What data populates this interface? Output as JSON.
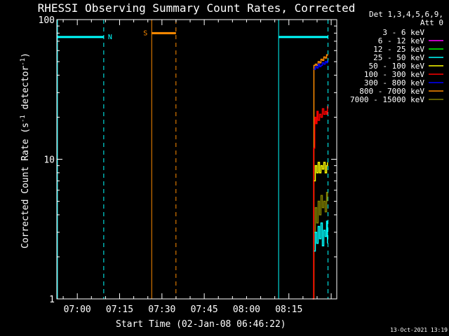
{
  "chart_data": {
    "type": "line",
    "title": "RHESSI Observing Summary Count Rates, Corrected",
    "xlabel": "Start Time (02-Jan-08 06:46:22)",
    "ylabel": "Corrected Count Rate (s",
    "ylabel_sup": "-1",
    "ylabel_mid": " detector",
    "ylabel_end": ")",
    "yscale": "log",
    "ylim": [
      1,
      100
    ],
    "yticks": [
      "1",
      "10",
      "100"
    ],
    "xrange_min": [
      6.37,
      105.6
    ],
    "xticks": [
      {
        "label": "07:00",
        "min": 13.63
      },
      {
        "label": "07:15",
        "min": 28.63
      },
      {
        "label": "07:30",
        "min": 43.63
      },
      {
        "label": "07:45",
        "min": 58.63
      },
      {
        "label": "08:00",
        "min": 73.63
      },
      {
        "label": "08:15",
        "min": 88.63
      }
    ],
    "legend": {
      "header1": "Det 1,3,4,5,6,9,",
      "header2": "Att 0",
      "items": [
        {
          "label": "3 - 6 keV",
          "color": "#000000"
        },
        {
          "label": "6 - 12 keV",
          "color": "#ff00ff"
        },
        {
          "label": "12 - 25 keV",
          "color": "#00ff00"
        },
        {
          "label": "25 - 50 keV",
          "color": "#00ffff"
        },
        {
          "label": "50 - 100 keV",
          "color": "#ffff00"
        },
        {
          "label": "100 - 300 keV",
          "color": "#ff0000"
        },
        {
          "label": "300 - 800 keV",
          "color": "#0000ff"
        },
        {
          "label": "800 - 7000 keV",
          "color": "#ff8c00"
        },
        {
          "label": "7000 - 15000 keV",
          "color": "#808000"
        }
      ]
    },
    "spans": [
      {
        "label": "N",
        "color": "#00ffff",
        "start": 6.37,
        "end": 23.0,
        "level": 75
      },
      {
        "label": "S",
        "color": "#ff8c00",
        "start": 40.0,
        "end": 48.6,
        "level": 80
      },
      {
        "label": "",
        "color": "#00ffff",
        "start": 85.0,
        "end": 102.5,
        "level": 75
      }
    ],
    "series": [
      {
        "color": "#ff8c00",
        "x": [
          97.2,
          97.5,
          98.0,
          98.5,
          99.0,
          99.5,
          100.0,
          100.5,
          101.0,
          101.5,
          102.0,
          102.3
        ],
        "y": [
          1,
          47,
          48,
          47,
          50,
          49,
          52,
          51,
          54,
          53,
          56,
          55
        ]
      },
      {
        "color": "#0000ff",
        "x": [
          97.5,
          98.0,
          98.5,
          99.0,
          99.5,
          100.0,
          100.5,
          101.0,
          101.5,
          102.0,
          102.3
        ],
        "y": [
          44,
          46,
          45,
          48,
          46,
          47,
          49,
          48,
          50,
          49,
          51
        ]
      },
      {
        "color": "#ff0000",
        "x": [
          97.0,
          97.4,
          97.8,
          98.2,
          98.6,
          99.0,
          99.5,
          100.0,
          100.5,
          101.0,
          101.5,
          102.0,
          102.3
        ],
        "y": [
          1,
          12,
          20,
          18,
          22,
          19,
          21,
          20,
          23,
          21,
          22,
          21,
          24
        ]
      },
      {
        "color": "#ffff00",
        "x": [
          97.5,
          98.0,
          98.5,
          99.0,
          99.5,
          100.0,
          100.5,
          101.0,
          101.5,
          102.0,
          102.3
        ],
        "y": [
          7,
          9,
          8,
          9.5,
          8,
          9,
          8.5,
          9.5,
          8,
          9,
          9.5
        ]
      },
      {
        "color": "#808000",
        "x": [
          97.5,
          98.0,
          98.5,
          99.0,
          99.5,
          100.0,
          100.5,
          101.0,
          101.5,
          102.0,
          102.3
        ],
        "y": [
          3,
          4.5,
          3.5,
          5,
          4,
          5.5,
          4.5,
          5,
          4.2,
          5.8,
          5
        ]
      },
      {
        "color": "#00ffff",
        "x": [
          97.5,
          98.0,
          98.5,
          99.0,
          99.5,
          100.0,
          100.5,
          101.0,
          101.5,
          102.0,
          102.3
        ],
        "y": [
          2.2,
          3.0,
          2.5,
          3.3,
          2.7,
          3.5,
          2.4,
          3.1,
          2.8,
          3.6,
          2.5
        ]
      }
    ],
    "vlines_dashed": [
      {
        "color": "#00ffff",
        "min": 23.0
      },
      {
        "color": "#ff8c00",
        "min": 48.6
      },
      {
        "color": "#00ffff",
        "min": 102.5
      }
    ],
    "vlines_solid": [
      {
        "color": "#00ffff",
        "min": 6.6
      },
      {
        "color": "#ff8c00",
        "min": 40.0
      },
      {
        "color": "#00ffff",
        "min": 85.0
      }
    ]
  },
  "timestamp": "13-Oct-2021 13:19"
}
